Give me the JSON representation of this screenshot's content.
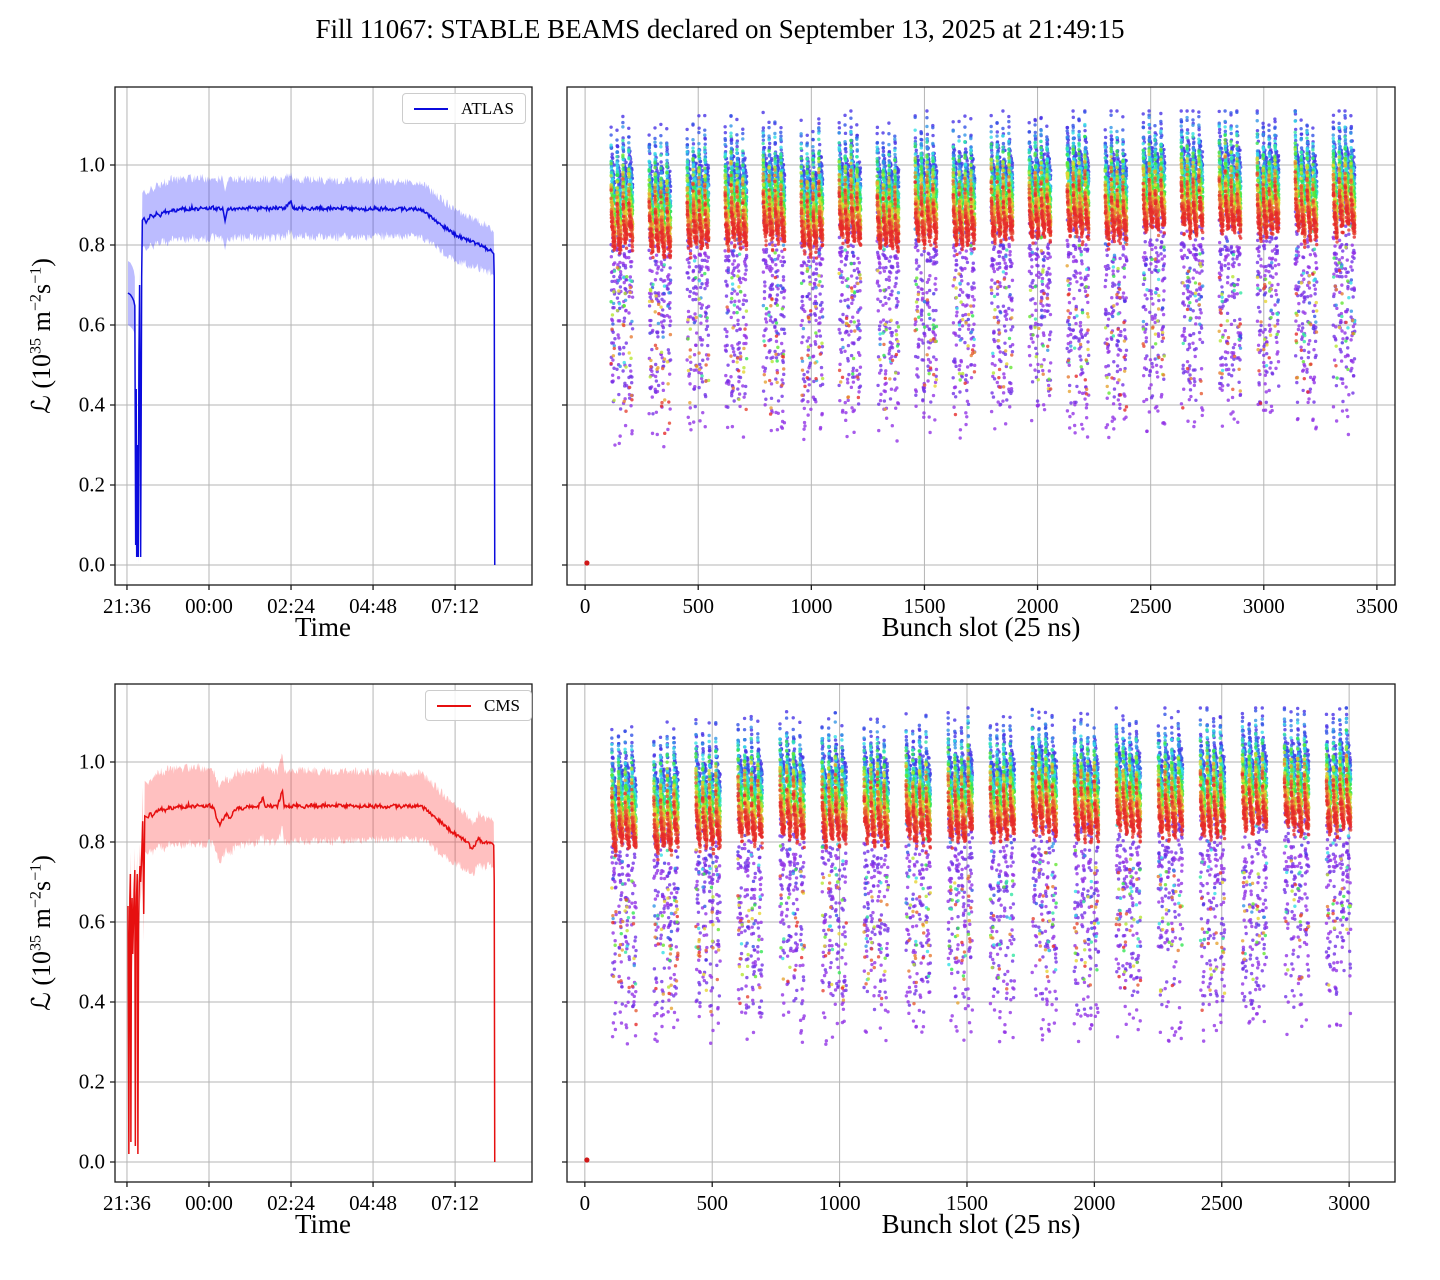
{
  "title": "Fill 11067: STABLE BEAMS declared on September 13, 2025 at 21:49:15",
  "labels": {
    "time": "Time",
    "slot": "Bunch slot (25 ns)"
  },
  "axes": {
    "time": {
      "range": [
        0.25,
        12.45
      ],
      "ticks": [
        {
          "value": 0.6,
          "label": "21:36"
        },
        {
          "value": 3.0,
          "label": "00:00"
        },
        {
          "value": 5.4,
          "label": "02:24"
        },
        {
          "value": 7.8,
          "label": "04:48"
        },
        {
          "value": 10.2,
          "label": "07:12"
        }
      ]
    },
    "lumi": {
      "range": [
        -0.05,
        1.195
      ],
      "ticks": [
        {
          "value": 0.0,
          "label": "0.0"
        },
        {
          "value": 0.2,
          "label": "0.2"
        },
        {
          "value": 0.4,
          "label": "0.4"
        },
        {
          "value": 0.6,
          "label": "0.6"
        },
        {
          "value": 0.8,
          "label": "0.8"
        },
        {
          "value": 1.0,
          "label": "1.0"
        }
      ],
      "label_parts": {
        "prefix": "ℒ (10",
        "sup1": "35",
        "unit1": " m",
        "sup2": "−2",
        "unit2": "s",
        "sup3": "−1",
        "suffix": ")"
      }
    },
    "slot_top": {
      "range": [
        -80,
        3580
      ],
      "ticks": [
        {
          "value": 0,
          "label": "0"
        },
        {
          "value": 500,
          "label": "500"
        },
        {
          "value": 1000,
          "label": "1000"
        },
        {
          "value": 1500,
          "label": "1500"
        },
        {
          "value": 2000,
          "label": "2000"
        },
        {
          "value": 2500,
          "label": "2500"
        },
        {
          "value": 3000,
          "label": "3000"
        },
        {
          "value": 3500,
          "label": "3500"
        }
      ]
    },
    "slot_bottom": {
      "range": [
        -70,
        3180
      ],
      "ticks": [
        {
          "value": 0,
          "label": "0"
        },
        {
          "value": 500,
          "label": "500"
        },
        {
          "value": 1000,
          "label": "1000"
        },
        {
          "value": 1500,
          "label": "1500"
        },
        {
          "value": 2000,
          "label": "2000"
        },
        {
          "value": 2500,
          "label": "2500"
        },
        {
          "value": 3000,
          "label": "3000"
        }
      ]
    }
  },
  "style": {
    "grid_color": "#b5b5b5",
    "axes_color": "#1a1a1a",
    "tick_len": 5,
    "atlas_color": "#0b0bdd",
    "atlas_band": "#2020ff",
    "atlas_band_alpha": 0.3,
    "cms_color": "#e60f0f",
    "cms_band": "#ff3030",
    "cms_band_alpha": 0.3
  },
  "chart_data": [
    {
      "id": "atlas_luminosity_vs_time",
      "type": "line",
      "legend": "ATLAS",
      "color": "#0b0bdd",
      "band_color": "#2020ff",
      "band_alpha": 0.3,
      "x_unit": "hours_since_21:00",
      "ylim": [
        -0.05,
        1.195
      ],
      "points": [
        [
          0.63,
          0.68,
          0.08
        ],
        [
          0.7,
          0.676,
          0.08
        ],
        [
          0.76,
          0.668,
          0.078
        ],
        [
          0.8,
          0.66,
          0.076
        ],
        [
          0.83,
          0.648,
          0.072
        ],
        [
          0.855,
          0.05,
          0.02
        ],
        [
          0.87,
          0.44,
          0.03
        ],
        [
          0.885,
          0.02,
          0.015
        ],
        [
          0.9,
          0.3,
          0.03
        ],
        [
          0.915,
          0.08,
          0.02
        ],
        [
          0.93,
          0.02,
          0.015
        ],
        [
          0.95,
          0.52,
          0.04
        ],
        [
          0.97,
          0.7,
          0.05
        ],
        [
          0.985,
          0.4,
          0.04
        ],
        [
          1.0,
          0.02,
          0.015
        ],
        [
          1.015,
          0.35,
          0.04
        ],
        [
          1.03,
          0.72,
          0.05
        ],
        [
          1.05,
          0.862,
          0.068
        ],
        [
          1.1,
          0.868,
          0.07
        ],
        [
          1.16,
          0.855,
          0.07
        ],
        [
          1.22,
          0.862,
          0.071
        ],
        [
          1.3,
          0.876,
          0.072
        ],
        [
          1.38,
          0.868,
          0.072
        ],
        [
          1.46,
          0.88,
          0.073
        ],
        [
          1.56,
          0.872,
          0.073
        ],
        [
          1.66,
          0.886,
          0.074
        ],
        [
          1.78,
          0.88,
          0.074
        ],
        [
          1.9,
          0.889,
          0.075
        ],
        [
          2.05,
          0.886,
          0.075
        ],
        [
          2.2,
          0.892,
          0.075
        ],
        [
          2.35,
          0.888,
          0.075
        ],
        [
          2.5,
          0.893,
          0.075
        ],
        [
          2.65,
          0.889,
          0.075
        ],
        [
          2.8,
          0.893,
          0.074
        ],
        [
          2.95,
          0.89,
          0.074
        ],
        [
          3.1,
          0.894,
          0.074
        ],
        [
          3.25,
          0.89,
          0.074
        ],
        [
          3.4,
          0.893,
          0.074
        ],
        [
          3.47,
          0.86,
          0.073
        ],
        [
          3.54,
          0.892,
          0.073
        ],
        [
          3.7,
          0.889,
          0.073
        ],
        [
          3.85,
          0.893,
          0.073
        ],
        [
          4.0,
          0.89,
          0.073
        ],
        [
          4.2,
          0.893,
          0.073
        ],
        [
          4.4,
          0.89,
          0.072
        ],
        [
          4.6,
          0.893,
          0.072
        ],
        [
          4.8,
          0.89,
          0.072
        ],
        [
          5.0,
          0.893,
          0.072
        ],
        [
          5.2,
          0.89,
          0.072
        ],
        [
          5.4,
          0.91,
          0.072
        ],
        [
          5.45,
          0.892,
          0.072
        ],
        [
          5.6,
          0.89,
          0.071
        ],
        [
          5.8,
          0.893,
          0.071
        ],
        [
          6.0,
          0.89,
          0.071
        ],
        [
          6.2,
          0.893,
          0.071
        ],
        [
          6.4,
          0.89,
          0.071
        ],
        [
          6.6,
          0.892,
          0.07
        ],
        [
          6.8,
          0.89,
          0.07
        ],
        [
          7.0,
          0.893,
          0.07
        ],
        [
          7.2,
          0.89,
          0.07
        ],
        [
          7.4,
          0.892,
          0.07
        ],
        [
          7.6,
          0.889,
          0.07
        ],
        [
          7.8,
          0.892,
          0.069
        ],
        [
          8.0,
          0.89,
          0.069
        ],
        [
          8.2,
          0.892,
          0.069
        ],
        [
          8.4,
          0.889,
          0.069
        ],
        [
          8.6,
          0.891,
          0.069
        ],
        [
          8.8,
          0.889,
          0.068
        ],
        [
          9.0,
          0.891,
          0.068
        ],
        [
          9.15,
          0.889,
          0.068
        ],
        [
          9.3,
          0.882,
          0.067
        ],
        [
          9.5,
          0.869,
          0.066
        ],
        [
          9.7,
          0.856,
          0.065
        ],
        [
          9.9,
          0.843,
          0.064
        ],
        [
          10.1,
          0.832,
          0.063
        ],
        [
          10.3,
          0.822,
          0.062
        ],
        [
          10.5,
          0.814,
          0.061
        ],
        [
          10.7,
          0.808,
          0.06
        ],
        [
          10.85,
          0.802,
          0.059
        ],
        [
          11.0,
          0.796,
          0.058
        ],
        [
          11.1,
          0.792,
          0.057
        ],
        [
          11.2,
          0.788,
          0.056
        ],
        [
          11.28,
          0.783,
          0.055
        ],
        [
          11.33,
          0.778,
          0.054
        ],
        [
          11.345,
          0.72,
          0.05
        ],
        [
          11.36,
          0.0,
          0.0
        ]
      ]
    },
    {
      "id": "atlas_bunch_by_bunch",
      "type": "scatter",
      "x_max_slot": 3440,
      "trains": {
        "count": 20,
        "first_slot": 115,
        "period": 168,
        "subtrains": 4,
        "bunches_per_subtrain": 18,
        "subtrain_gap": 8
      },
      "train_trend": 0.05,
      "seed": 20,
      "point_radius": 1.7,
      "alpha": 0.8,
      "origin_point": {
        "slot": 8,
        "value": 0.005,
        "color": "#d01818"
      },
      "time_samples": {
        "ramp_samples": 2,
        "u": [
          0,
          0.04,
          0.09,
          0.16,
          0.24,
          0.33,
          0.42,
          0.52,
          0.62,
          0.72,
          0.8,
          0.86,
          0.91,
          0.95,
          0.98,
          1.0
        ],
        "colors": [
          "#9233e6",
          "#7233e6",
          "#4933e6",
          "#3355e6",
          "#3396e6",
          "#33dfe6",
          "#33e6a3",
          "#33e652",
          "#64e633",
          "#b5e633",
          "#e6d533",
          "#e6a433",
          "#e67c33",
          "#e65b33",
          "#e64333",
          "#e62b2b"
        ],
        "base": [
          0.68,
          0.76,
          1.005,
          0.985,
          0.968,
          0.952,
          0.938,
          0.922,
          0.906,
          0.893,
          0.882,
          0.873,
          0.863,
          0.853,
          0.845,
          0.838
        ]
      }
    },
    {
      "id": "cms_luminosity_vs_time",
      "type": "line",
      "legend": "CMS",
      "color": "#e60f0f",
      "band_color": "#ff3030",
      "band_alpha": 0.3,
      "x_unit": "hours_since_21:00",
      "ylim": [
        -0.05,
        1.195
      ],
      "points": [
        [
          0.63,
          0.64,
          0.055
        ],
        [
          0.655,
          0.02,
          0.01
        ],
        [
          0.67,
          0.5,
          0.04
        ],
        [
          0.685,
          0.66,
          0.05
        ],
        [
          0.7,
          0.72,
          0.055
        ],
        [
          0.715,
          0.05,
          0.02
        ],
        [
          0.73,
          0.58,
          0.05
        ],
        [
          0.75,
          0.66,
          0.05
        ],
        [
          0.77,
          0.52,
          0.045
        ],
        [
          0.79,
          0.6,
          0.05
        ],
        [
          0.81,
          0.68,
          0.05
        ],
        [
          0.83,
          0.73,
          0.055
        ],
        [
          0.845,
          0.04,
          0.02
        ],
        [
          0.86,
          0.55,
          0.045
        ],
        [
          0.88,
          0.66,
          0.05
        ],
        [
          0.9,
          0.72,
          0.055
        ],
        [
          0.92,
          0.02,
          0.01
        ],
        [
          0.94,
          0.58,
          0.05
        ],
        [
          0.96,
          0.7,
          0.055
        ],
        [
          0.98,
          0.74,
          0.055
        ],
        [
          1.0,
          0.7,
          0.055
        ],
        [
          1.03,
          0.76,
          0.06
        ],
        [
          1.06,
          0.852,
          0.085
        ],
        [
          1.09,
          0.62,
          0.07
        ],
        [
          1.12,
          0.865,
          0.088
        ],
        [
          1.2,
          0.858,
          0.09
        ],
        [
          1.28,
          0.872,
          0.091
        ],
        [
          1.36,
          0.864,
          0.092
        ],
        [
          1.46,
          0.878,
          0.093
        ],
        [
          1.58,
          0.884,
          0.094
        ],
        [
          1.7,
          0.878,
          0.094
        ],
        [
          1.82,
          0.888,
          0.095
        ],
        [
          1.95,
          0.884,
          0.095
        ],
        [
          2.1,
          0.89,
          0.095
        ],
        [
          2.25,
          0.886,
          0.095
        ],
        [
          2.4,
          0.892,
          0.095
        ],
        [
          2.55,
          0.888,
          0.095
        ],
        [
          2.7,
          0.892,
          0.095
        ],
        [
          2.85,
          0.888,
          0.094
        ],
        [
          3.0,
          0.892,
          0.094
        ],
        [
          3.12,
          0.888,
          0.094
        ],
        [
          3.22,
          0.862,
          0.093
        ],
        [
          3.32,
          0.845,
          0.092
        ],
        [
          3.42,
          0.858,
          0.092
        ],
        [
          3.52,
          0.872,
          0.092
        ],
        [
          3.62,
          0.858,
          0.091
        ],
        [
          3.72,
          0.876,
          0.091
        ],
        [
          3.85,
          0.886,
          0.091
        ],
        [
          4.0,
          0.88,
          0.091
        ],
        [
          4.15,
          0.89,
          0.09
        ],
        [
          4.3,
          0.886,
          0.09
        ],
        [
          4.45,
          0.89,
          0.09
        ],
        [
          4.58,
          0.912,
          0.09
        ],
        [
          4.63,
          0.888,
          0.09
        ],
        [
          4.8,
          0.89,
          0.089
        ],
        [
          5.0,
          0.888,
          0.089
        ],
        [
          5.15,
          0.928,
          0.089
        ],
        [
          5.2,
          0.89,
          0.089
        ],
        [
          5.4,
          0.888,
          0.089
        ],
        [
          5.6,
          0.892,
          0.088
        ],
        [
          5.8,
          0.888,
          0.088
        ],
        [
          6.0,
          0.892,
          0.088
        ],
        [
          6.2,
          0.889,
          0.087
        ],
        [
          6.4,
          0.892,
          0.087
        ],
        [
          6.6,
          0.889,
          0.087
        ],
        [
          6.8,
          0.892,
          0.086
        ],
        [
          7.0,
          0.889,
          0.086
        ],
        [
          7.2,
          0.892,
          0.086
        ],
        [
          7.4,
          0.889,
          0.085
        ],
        [
          7.6,
          0.891,
          0.085
        ],
        [
          7.8,
          0.889,
          0.085
        ],
        [
          8.0,
          0.891,
          0.084
        ],
        [
          8.2,
          0.888,
          0.084
        ],
        [
          8.4,
          0.891,
          0.084
        ],
        [
          8.6,
          0.888,
          0.083
        ],
        [
          8.8,
          0.891,
          0.083
        ],
        [
          9.0,
          0.888,
          0.083
        ],
        [
          9.15,
          0.89,
          0.082
        ],
        [
          9.3,
          0.884,
          0.081
        ],
        [
          9.5,
          0.87,
          0.079
        ],
        [
          9.7,
          0.855,
          0.077
        ],
        [
          9.9,
          0.84,
          0.075
        ],
        [
          10.1,
          0.826,
          0.073
        ],
        [
          10.3,
          0.814,
          0.071
        ],
        [
          10.45,
          0.806,
          0.069
        ],
        [
          10.6,
          0.795,
          0.067
        ],
        [
          10.7,
          0.78,
          0.065
        ],
        [
          10.78,
          0.792,
          0.064
        ],
        [
          10.88,
          0.808,
          0.063
        ],
        [
          10.98,
          0.802,
          0.062
        ],
        [
          11.08,
          0.796,
          0.061
        ],
        [
          11.18,
          0.802,
          0.06
        ],
        [
          11.28,
          0.797,
          0.059
        ],
        [
          11.33,
          0.792,
          0.058
        ],
        [
          11.345,
          0.7,
          0.05
        ],
        [
          11.36,
          0.0,
          0.0
        ]
      ]
    },
    {
      "id": "cms_bunch_by_bunch",
      "type": "scatter",
      "x_max_slot": 3050,
      "trains": {
        "count": 18,
        "first_slot": 106,
        "period": 165,
        "subtrains": 4,
        "bunches_per_subtrain": 18,
        "subtrain_gap": 8
      },
      "train_trend": 0.045,
      "seed": 77,
      "point_radius": 1.7,
      "alpha": 0.8,
      "origin_point": {
        "slot": 8,
        "value": 0.005,
        "color": "#d01818"
      },
      "time_samples": {
        "ramp_samples": 2,
        "u": [
          0,
          0.04,
          0.09,
          0.16,
          0.24,
          0.33,
          0.42,
          0.52,
          0.62,
          0.72,
          0.8,
          0.86,
          0.91,
          0.95,
          0.98,
          1.0
        ],
        "colors": [
          "#9233e6",
          "#7233e6",
          "#4933e6",
          "#3355e6",
          "#3396e6",
          "#33dfe6",
          "#33e6a3",
          "#33e652",
          "#64e633",
          "#b5e633",
          "#e6d533",
          "#e6a433",
          "#e67c33",
          "#e65b33",
          "#e64333",
          "#e62b2b"
        ],
        "base": [
          0.66,
          0.74,
          1.0,
          0.982,
          0.965,
          0.95,
          0.936,
          0.92,
          0.905,
          0.892,
          0.881,
          0.872,
          0.862,
          0.852,
          0.844,
          0.837
        ]
      }
    }
  ]
}
